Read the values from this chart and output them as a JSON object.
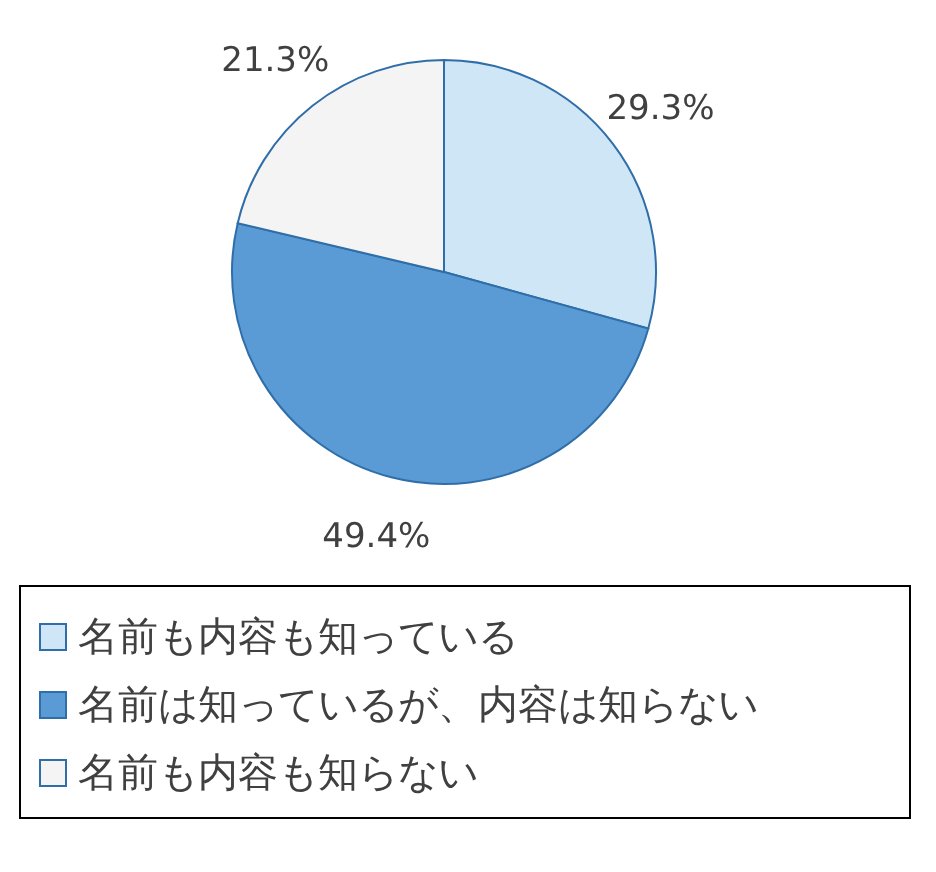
{
  "chart_data": {
    "type": "pie",
    "categories": [
      "名前も内容も知っている",
      "名前は知っているが、内容は知らない",
      "名前も内容も知らない"
    ],
    "values": [
      29.3,
      49.4,
      21.3
    ],
    "colors": [
      "#cfe6f7",
      "#5b9bd5",
      "#f4f4f4"
    ],
    "value_labels": [
      "29.3%",
      "49.4%",
      "21.3%"
    ],
    "legend": "bottom"
  }
}
